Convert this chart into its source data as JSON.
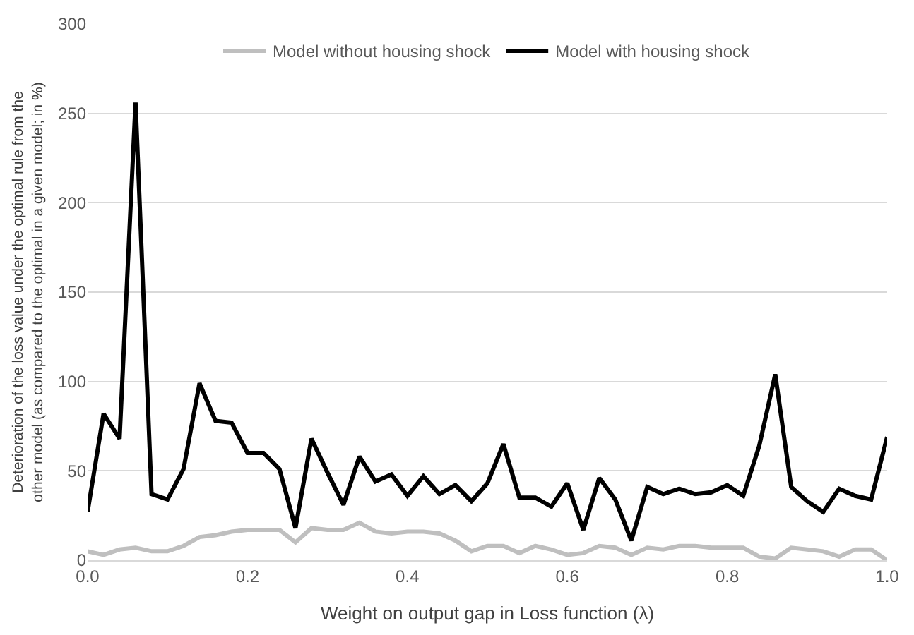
{
  "chart_data": {
    "type": "line",
    "xlabel": "Weight on output gap in Loss function (λ)",
    "ylabel": "Deterioration of the loss value under the optimal rule from the other model (as compared to the optimal in a given model; in %)",
    "x": [
      0,
      0.02,
      0.04,
      0.06,
      0.08,
      0.1,
      0.12,
      0.14,
      0.16,
      0.18,
      0.2,
      0.22,
      0.24,
      0.26,
      0.28,
      0.3,
      0.32,
      0.34,
      0.36,
      0.38,
      0.4,
      0.42,
      0.44,
      0.46,
      0.48,
      0.5,
      0.52,
      0.54,
      0.56,
      0.58,
      0.6,
      0.62,
      0.64,
      0.66,
      0.68,
      0.7,
      0.72,
      0.74,
      0.76,
      0.78,
      0.8,
      0.82,
      0.84,
      0.86,
      0.88,
      0.9,
      0.92,
      0.94,
      0.96,
      0.98,
      1.0
    ],
    "series": [
      {
        "name": "Model without housing shock",
        "color": "#bfbfbf",
        "values": [
          5,
          3,
          6,
          7,
          5,
          5,
          8,
          13,
          14,
          16,
          17,
          17,
          17,
          10,
          18,
          17,
          17,
          21,
          16,
          15,
          16,
          16,
          15,
          11,
          5,
          8,
          8,
          4,
          8,
          6,
          3,
          4,
          8,
          7,
          3,
          7,
          6,
          8,
          8,
          7,
          7,
          7,
          2,
          1,
          7,
          6,
          5,
          2,
          6,
          6,
          0
        ]
      },
      {
        "name": "Model with housing shock",
        "color": "#000000",
        "values": [
          27,
          82,
          68,
          256,
          37,
          34,
          51,
          99,
          78,
          77,
          60,
          60,
          51,
          18,
          68,
          49,
          31,
          58,
          44,
          48,
          36,
          47,
          37,
          42,
          33,
          43,
          65,
          35,
          35,
          30,
          43,
          17,
          46,
          34,
          11,
          41,
          37,
          40,
          37,
          38,
          42,
          36,
          64,
          104,
          41,
          33,
          27,
          40,
          36,
          34,
          69
        ]
      }
    ],
    "xlim": [
      0,
      1
    ],
    "xticks": [
      {
        "value": 0,
        "label": "0.0"
      },
      {
        "value": 0.2,
        "label": "0.2"
      },
      {
        "value": 0.4,
        "label": "0.4"
      },
      {
        "value": 0.6,
        "label": "0.6"
      },
      {
        "value": 0.8,
        "label": "0.8"
      },
      {
        "value": 1,
        "label": "1.0"
      }
    ],
    "ylim": [
      0,
      300
    ],
    "yticks": [
      0,
      50,
      100,
      150,
      200,
      250,
      300
    ],
    "grid": "y",
    "legend": "top",
    "marker": "none",
    "line_style": "solid"
  }
}
